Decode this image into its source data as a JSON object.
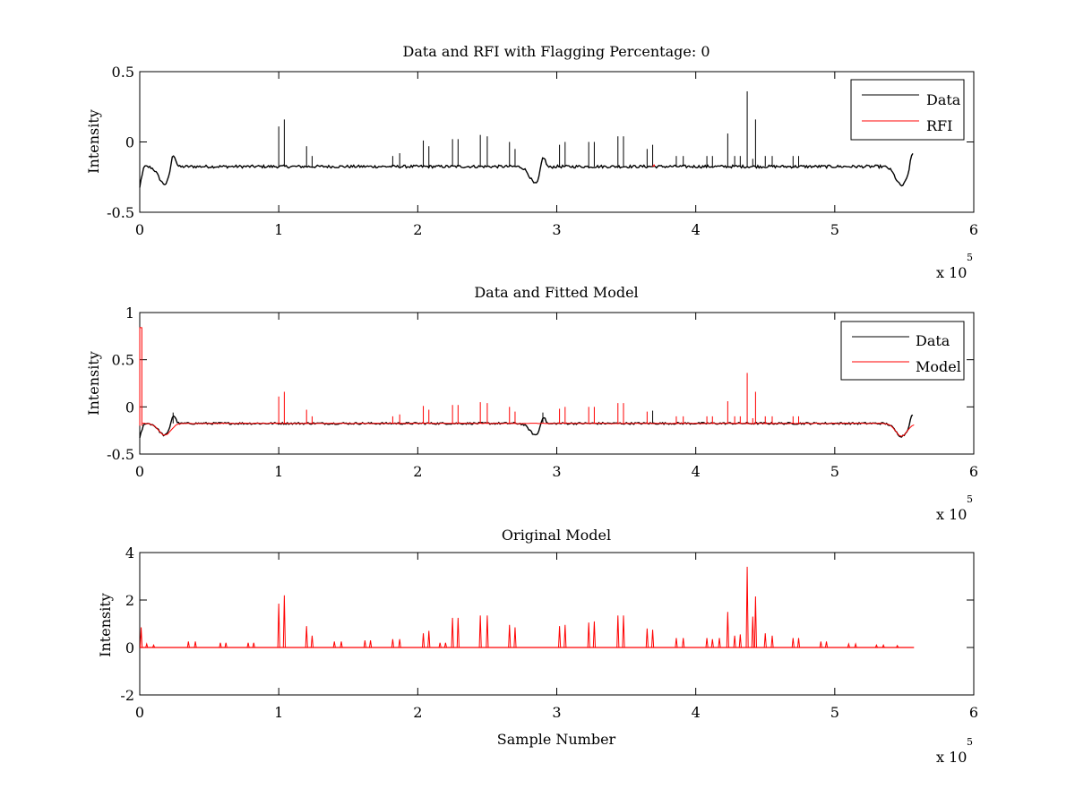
{
  "figure": {
    "background": "#ffffff",
    "colors": {
      "data": "#000000",
      "rfi": "#ff0000",
      "model": "#ff0000",
      "axes": "#000000"
    }
  },
  "chart_data": [
    {
      "type": "line",
      "title": "Data and RFI with Flagging Percentage: 0",
      "xlabel": "",
      "ylabel": "Intensity",
      "xlim": [
        0,
        600000
      ],
      "ylim": [
        -0.5,
        0.5
      ],
      "xticks": [
        0,
        1,
        2,
        3,
        4,
        5,
        6
      ],
      "yticks": [
        "-0.5",
        "0",
        "0.5"
      ],
      "x_multiplier": {
        "base": "x 10",
        "exponent": "5"
      },
      "legend": {
        "placement": "top-right",
        "entries": [
          "Data",
          "RFI"
        ]
      },
      "baseline": -0.175,
      "x_end": 557000,
      "dips": [
        {
          "center": 18000,
          "depth": -0.3
        },
        {
          "center": 285000,
          "depth": -0.3
        },
        {
          "center": 548000,
          "depth": -0.31
        }
      ],
      "bumps": [
        {
          "center": 24000,
          "peak": -0.05
        },
        {
          "center": 290000,
          "peak": -0.05
        },
        {
          "center": 556000,
          "peak": -0.06
        }
      ],
      "spikes_data": [
        [
          100000,
          0.11
        ],
        [
          104000,
          0.16
        ],
        [
          120000,
          -0.03
        ],
        [
          124000,
          -0.1
        ],
        [
          182000,
          -0.1
        ],
        [
          187000,
          -0.08
        ],
        [
          204000,
          0.01
        ],
        [
          208000,
          -0.03
        ],
        [
          225000,
          0.02
        ],
        [
          229000,
          0.02
        ],
        [
          245000,
          0.05
        ],
        [
          250000,
          0.04
        ],
        [
          266000,
          0.0
        ],
        [
          270000,
          -0.05
        ],
        [
          302000,
          -0.02
        ],
        [
          306000,
          0.0
        ],
        [
          323000,
          0.0
        ],
        [
          327000,
          0.0
        ],
        [
          344000,
          0.04
        ],
        [
          348000,
          0.04
        ],
        [
          365000,
          -0.05
        ],
        [
          369000,
          -0.02
        ],
        [
          386000,
          -0.1
        ],
        [
          391000,
          -0.1
        ],
        [
          408000,
          -0.1
        ],
        [
          412000,
          -0.1
        ],
        [
          423000,
          0.06
        ],
        [
          428000,
          -0.1
        ],
        [
          432000,
          -0.1
        ],
        [
          437000,
          0.36
        ],
        [
          441000,
          -0.12
        ],
        [
          443000,
          0.16
        ],
        [
          450000,
          -0.1
        ],
        [
          455000,
          -0.1
        ],
        [
          470000,
          -0.1
        ],
        [
          474000,
          -0.1
        ]
      ],
      "spikes_rfi": [
        [
          369000,
          -0.17
        ],
        [
          370000,
          -0.16
        ]
      ],
      "series": [
        {
          "name": "Data",
          "color": "#000000"
        },
        {
          "name": "RFI",
          "color": "#ff0000"
        }
      ]
    },
    {
      "type": "line",
      "title": "Data and Fitted Model",
      "xlabel": "",
      "ylabel": "Intensity",
      "xlim": [
        0,
        600000
      ],
      "ylim": [
        -0.5,
        1
      ],
      "xticks": [
        0,
        1,
        2,
        3,
        4,
        5,
        6
      ],
      "yticks": [
        "-0.5",
        "0",
        "0.5",
        "1"
      ],
      "x_multiplier": {
        "base": "x 10",
        "exponent": "5"
      },
      "legend": {
        "placement": "top-right",
        "entries": [
          "Data",
          "Model"
        ]
      },
      "baseline": -0.175,
      "x_end": 557000,
      "dips": [
        {
          "center": 18000,
          "depth": -0.3
        },
        {
          "center": 285000,
          "depth": -0.3
        },
        {
          "center": 548000,
          "depth": -0.31
        }
      ],
      "bumps": [
        {
          "center": 24000,
          "peak": -0.05
        },
        {
          "center": 290000,
          "peak": -0.05
        },
        {
          "center": 556000,
          "peak": -0.06
        }
      ],
      "spikes_data": [
        [
          24000,
          -0.06
        ],
        [
          290000,
          -0.06
        ],
        [
          369000,
          -0.04
        ]
      ],
      "model_initial_spike": [
        1000,
        0.84
      ],
      "spikes_model": [
        [
          100000,
          0.11
        ],
        [
          104000,
          0.16
        ],
        [
          120000,
          -0.03
        ],
        [
          124000,
          -0.1
        ],
        [
          182000,
          -0.1
        ],
        [
          187000,
          -0.08
        ],
        [
          204000,
          0.01
        ],
        [
          208000,
          -0.03
        ],
        [
          225000,
          0.02
        ],
        [
          229000,
          0.02
        ],
        [
          245000,
          0.05
        ],
        [
          250000,
          0.04
        ],
        [
          266000,
          0.0
        ],
        [
          270000,
          -0.05
        ],
        [
          302000,
          -0.02
        ],
        [
          306000,
          0.0
        ],
        [
          323000,
          0.0
        ],
        [
          327000,
          0.0
        ],
        [
          344000,
          0.04
        ],
        [
          348000,
          0.04
        ],
        [
          365000,
          -0.05
        ],
        [
          386000,
          -0.1
        ],
        [
          391000,
          -0.1
        ],
        [
          408000,
          -0.1
        ],
        [
          412000,
          -0.1
        ],
        [
          423000,
          0.06
        ],
        [
          428000,
          -0.1
        ],
        [
          432000,
          -0.1
        ],
        [
          437000,
          0.36
        ],
        [
          441000,
          -0.12
        ],
        [
          443000,
          0.16
        ],
        [
          450000,
          -0.1
        ],
        [
          455000,
          -0.1
        ],
        [
          470000,
          -0.1
        ],
        [
          474000,
          -0.1
        ]
      ],
      "series": [
        {
          "name": "Data",
          "color": "#000000"
        },
        {
          "name": "Model",
          "color": "#ff0000"
        }
      ]
    },
    {
      "type": "line",
      "title": "Original Model",
      "xlabel": "Sample Number",
      "ylabel": "Intensity",
      "xlim": [
        0,
        600000
      ],
      "ylim": [
        -2,
        4
      ],
      "xticks": [
        0,
        1,
        2,
        3,
        4,
        5,
        6
      ],
      "yticks": [
        "-2",
        "0",
        "2",
        "4"
      ],
      "x_multiplier": {
        "base": "x 10",
        "exponent": "5"
      },
      "baseline": 0,
      "x_end": 557000,
      "spikes_model": [
        [
          1000,
          0.85
        ],
        [
          5000,
          0.15
        ],
        [
          10000,
          0.1
        ],
        [
          35000,
          0.25
        ],
        [
          40000,
          0.25
        ],
        [
          58000,
          0.2
        ],
        [
          62000,
          0.2
        ],
        [
          78000,
          0.2
        ],
        [
          82000,
          0.2
        ],
        [
          100000,
          1.85
        ],
        [
          104000,
          2.2
        ],
        [
          120000,
          0.9
        ],
        [
          124000,
          0.5
        ],
        [
          140000,
          0.25
        ],
        [
          145000,
          0.25
        ],
        [
          162000,
          0.3
        ],
        [
          166000,
          0.3
        ],
        [
          182000,
          0.35
        ],
        [
          187000,
          0.35
        ],
        [
          204000,
          0.6
        ],
        [
          208000,
          0.7
        ],
        [
          216000,
          0.2
        ],
        [
          220000,
          0.2
        ],
        [
          225000,
          1.25
        ],
        [
          229000,
          1.25
        ],
        [
          245000,
          1.35
        ],
        [
          250000,
          1.35
        ],
        [
          266000,
          0.95
        ],
        [
          270000,
          0.85
        ],
        [
          302000,
          0.9
        ],
        [
          306000,
          0.95
        ],
        [
          323000,
          1.05
        ],
        [
          327000,
          1.1
        ],
        [
          344000,
          1.35
        ],
        [
          348000,
          1.35
        ],
        [
          365000,
          0.8
        ],
        [
          369000,
          0.75
        ],
        [
          386000,
          0.4
        ],
        [
          391000,
          0.4
        ],
        [
          408000,
          0.4
        ],
        [
          412000,
          0.35
        ],
        [
          417000,
          0.4
        ],
        [
          423000,
          1.5
        ],
        [
          428000,
          0.5
        ],
        [
          432000,
          0.55
        ],
        [
          437000,
          3.4
        ],
        [
          441000,
          1.3
        ],
        [
          443000,
          2.15
        ],
        [
          450000,
          0.6
        ],
        [
          455000,
          0.5
        ],
        [
          470000,
          0.4
        ],
        [
          474000,
          0.4
        ],
        [
          490000,
          0.25
        ],
        [
          494000,
          0.25
        ],
        [
          510000,
          0.15
        ],
        [
          515000,
          0.15
        ],
        [
          530000,
          0.1
        ],
        [
          535000,
          0.1
        ],
        [
          545000,
          0.08
        ]
      ],
      "series": [
        {
          "name": "Model",
          "color": "#ff0000"
        }
      ]
    }
  ]
}
